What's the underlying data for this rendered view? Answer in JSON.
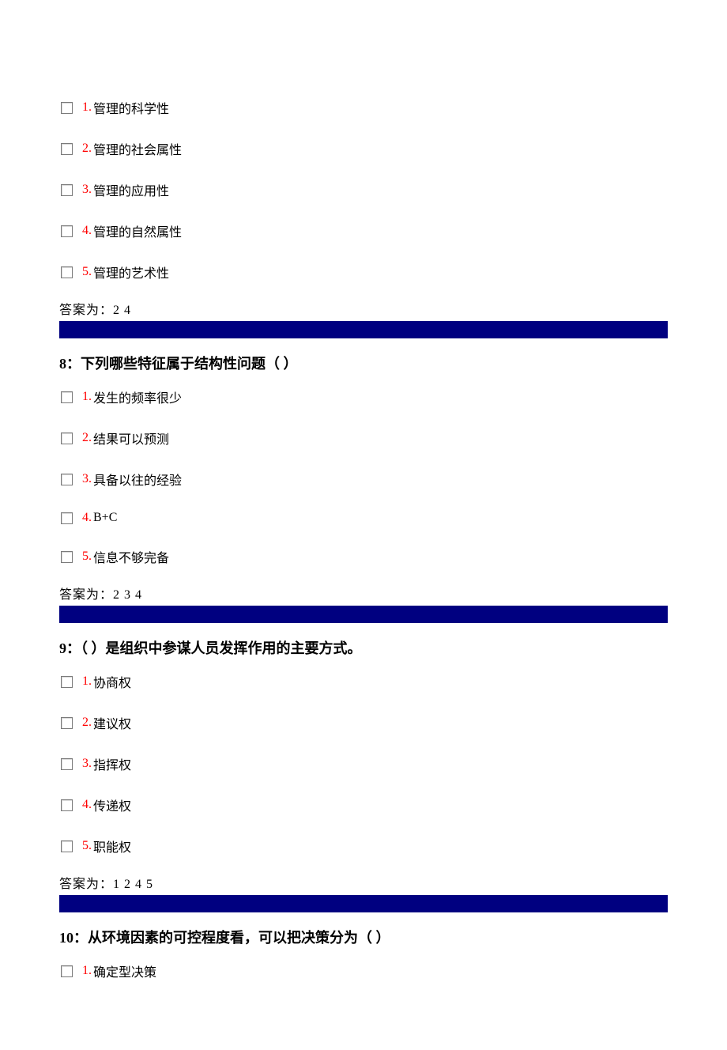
{
  "colors": {
    "option_number": "#ff0000",
    "text": "#000000",
    "bar": "#000080",
    "background": "#ffffff",
    "checkbox_border": "#7a7a7a"
  },
  "typography": {
    "body_fontsize_pt": 12,
    "question_fontsize_pt": 14,
    "font_family": "SimSun"
  },
  "blocks": [
    {
      "options": [
        {
          "num": "1.",
          "text": "管理的科学性"
        },
        {
          "num": "2.",
          "text": "管理的社会属性"
        },
        {
          "num": "3.",
          "text": "管理的应用性"
        },
        {
          "num": "4.",
          "text": "管理的自然属性"
        },
        {
          "num": "5.",
          "text": "管理的艺术性"
        }
      ],
      "answer": "答案为：2 4"
    },
    {
      "question_num": "8：",
      "question_text": "下列哪些特征属于结构性问题（ ）",
      "options": [
        {
          "num": "1.",
          "text": "发生的频率很少"
        },
        {
          "num": "2.",
          "text": "结果可以预测"
        },
        {
          "num": "3.",
          "text": "具备以往的经验"
        },
        {
          "num": "4.",
          "text": "B+C"
        },
        {
          "num": "5.",
          "text": "信息不够完备"
        }
      ],
      "answer": "答案为：2 3 4"
    },
    {
      "question_num": "9：",
      "question_text": "（ ）是组织中参谋人员发挥作用的主要方式。",
      "options": [
        {
          "num": "1.",
          "text": "协商权"
        },
        {
          "num": "2.",
          "text": "建议权"
        },
        {
          "num": "3.",
          "text": "指挥权"
        },
        {
          "num": "4.",
          "text": "传递权"
        },
        {
          "num": "5.",
          "text": "职能权"
        }
      ],
      "answer": "答案为：1 2 4 5"
    },
    {
      "question_num": "10：",
      "question_text": "从环境因素的可控程度看，可以把决策分为（ ）",
      "options": [
        {
          "num": "1.",
          "text": "确定型决策"
        }
      ]
    }
  ]
}
